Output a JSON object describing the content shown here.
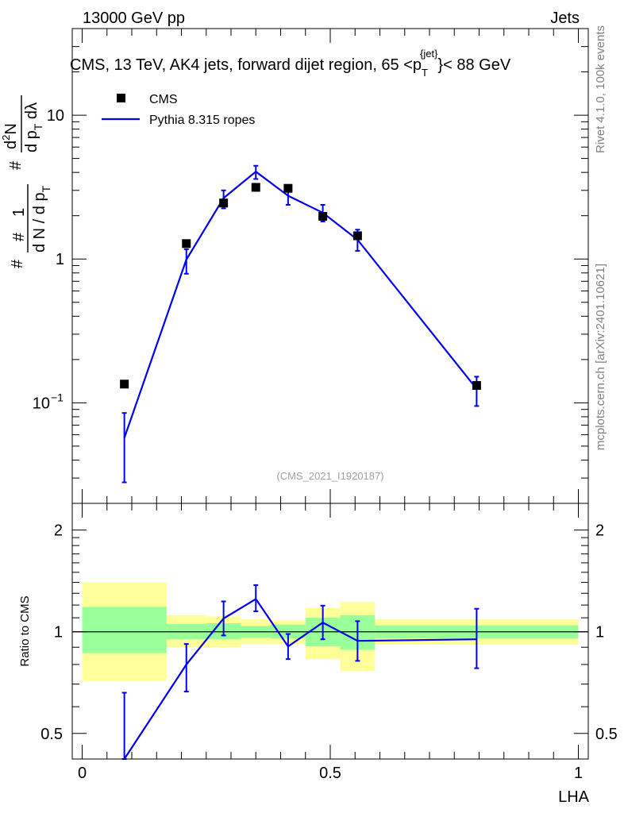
{
  "header": {
    "energy_label": "13000 GeV pp",
    "category_label": "Jets"
  },
  "side_labels": {
    "rivet": "Rivet 4.1.0,  100k events",
    "mcplots": "mcplots.cern.ch [arXiv:2401.10621]"
  },
  "colors": {
    "mc_line": "#0000ee",
    "data_marker": "#000000",
    "band_inner": "#99ff99",
    "band_outer": "#ffff99",
    "ref_line": "#000000",
    "watermark": "#a0a0a0"
  },
  "chart_data": [
    {
      "type": "scatter",
      "name": "main-distribution",
      "title_parts": {
        "before": "CMS, 13 TeV, AK4 jets, forward dijet region, 65 <p",
        "sub": "T",
        "sup": "{jet}",
        "after": "}< 88 GeV"
      },
      "ylabel_parts": {
        "numer_hash": "#",
        "numer_one": "1",
        "denom": "d N / d p",
        "denom_sub": "T",
        "term2_hash": "#",
        "term2_numer": "d",
        "term2_numer_sup": "2",
        "term2_numer_end": "N",
        "term2_denom": "d p",
        "term2_denom_sub": "T",
        "term2_denom_end": " dλ",
        "prefix_hash": "#"
      },
      "yscale": "log",
      "ylim": [
        0.02,
        40
      ],
      "xlim": [
        -0.02,
        1.02
      ],
      "yticks": [
        {
          "value": 10,
          "label": "10"
        },
        {
          "value": 1,
          "label": "1"
        },
        {
          "value": 0.1,
          "label": "10",
          "sup": "−1"
        }
      ],
      "legend": [
        {
          "label": "CMS",
          "kind": "marker"
        },
        {
          "label": "Pythia 8.315 ropes",
          "kind": "line"
        }
      ],
      "legend_position": "top-left",
      "watermark": "(CMS_2021_I1920187)",
      "series": [
        {
          "name": "CMS",
          "x": [
            0.085,
            0.21,
            0.285,
            0.35,
            0.415,
            0.485,
            0.555,
            0.795
          ],
          "y": [
            0.135,
            1.28,
            2.45,
            3.15,
            3.1,
            1.98,
            1.45,
            0.132
          ]
        },
        {
          "name": "Pythia 8.315 ropes",
          "x": [
            0.085,
            0.21,
            0.285,
            0.35,
            0.415,
            0.485,
            0.555,
            0.795
          ],
          "y": [
            0.057,
            0.99,
            2.65,
            4.05,
            2.75,
            2.1,
            1.36,
            0.125
          ],
          "yerr_low": [
            0.028,
            0.79,
            2.25,
            3.6,
            2.38,
            1.82,
            1.14,
            0.095
          ],
          "yerr_high": [
            0.085,
            1.17,
            3.0,
            4.45,
            3.05,
            2.38,
            1.6,
            0.152
          ]
        }
      ]
    },
    {
      "type": "line",
      "name": "ratio",
      "ylabel": "Ratio to CMS",
      "xlabel": "LHA",
      "yscale": "log",
      "ylim": [
        0.42,
        2.4
      ],
      "xlim": [
        -0.02,
        1.02
      ],
      "yticks": [
        {
          "value": 2,
          "label": "2"
        },
        {
          "value": 1,
          "label": "1"
        },
        {
          "value": 0.5,
          "label": "0.5"
        }
      ],
      "xticks": [
        {
          "value": 0,
          "label": "0"
        },
        {
          "value": 0.5,
          "label": "0.5"
        },
        {
          "value": 1,
          "label": "1"
        }
      ],
      "bands": [
        {
          "x0": 0.0,
          "x1": 0.17,
          "outer": [
            0.715,
            1.4
          ],
          "inner": [
            0.865,
            1.185
          ]
        },
        {
          "x0": 0.17,
          "x1": 0.25,
          "outer": [
            0.9,
            1.12
          ],
          "inner": [
            0.95,
            1.055
          ]
        },
        {
          "x0": 0.25,
          "x1": 0.32,
          "outer": [
            0.9,
            1.11
          ],
          "inner": [
            0.95,
            1.06
          ]
        },
        {
          "x0": 0.32,
          "x1": 0.38,
          "outer": [
            0.92,
            1.09
          ],
          "inner": [
            0.96,
            1.04
          ]
        },
        {
          "x0": 0.38,
          "x1": 0.45,
          "outer": [
            0.92,
            1.08
          ],
          "inner": [
            0.955,
            1.05
          ]
        },
        {
          "x0": 0.45,
          "x1": 0.52,
          "outer": [
            0.83,
            1.175
          ],
          "inner": [
            0.905,
            1.1
          ]
        },
        {
          "x0": 0.52,
          "x1": 0.59,
          "outer": [
            0.765,
            1.225
          ],
          "inner": [
            0.885,
            1.12
          ]
        },
        {
          "x0": 0.59,
          "x1": 1.0,
          "outer": [
            0.915,
            1.09
          ],
          "inner": [
            0.955,
            1.045
          ]
        }
      ],
      "series": [
        {
          "name": "Pythia 8.315 ropes / CMS",
          "x": [
            0.085,
            0.21,
            0.285,
            0.35,
            0.415,
            0.485,
            0.555,
            0.795
          ],
          "y": [
            0.42,
            0.8,
            1.095,
            1.25,
            0.905,
            1.065,
            0.94,
            0.95
          ],
          "yerr_low": [
            0.42,
            0.665,
            0.975,
            1.15,
            0.83,
            0.95,
            0.82,
            0.78
          ],
          "yerr_high": [
            0.66,
            0.92,
            1.23,
            1.375,
            0.985,
            1.195,
            1.075,
            1.17
          ]
        }
      ]
    }
  ]
}
